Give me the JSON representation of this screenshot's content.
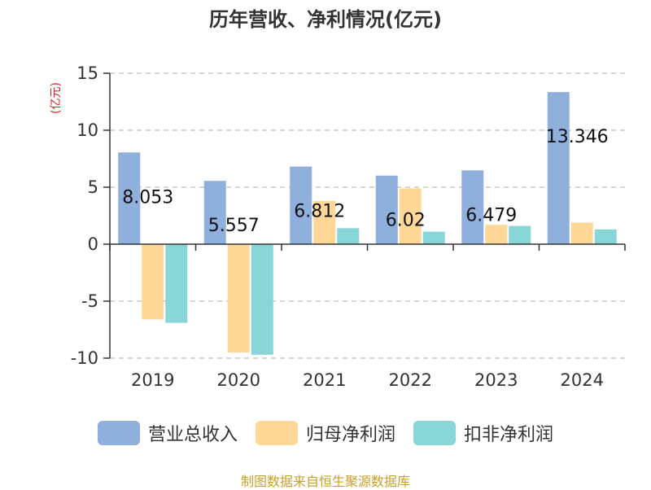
{
  "chart_data": {
    "type": "bar",
    "title": "历年营收、净利情况(亿元)",
    "unit_label": "(亿元)",
    "categories": [
      "2019",
      "2020",
      "2021",
      "2022",
      "2023",
      "2024"
    ],
    "series": [
      {
        "name": "营业总收入",
        "color": "#8fb0dc",
        "values": [
          8.053,
          5.557,
          6.812,
          6.02,
          6.479,
          13.346
        ]
      },
      {
        "name": "归母净利润",
        "color": "#ffd898",
        "values": [
          -6.6,
          -9.5,
          3.8,
          4.9,
          1.7,
          1.9
        ]
      },
      {
        "name": "扣非净利润",
        "color": "#88d6d8",
        "values": [
          -6.9,
          -9.7,
          1.4,
          1.1,
          1.6,
          1.3
        ]
      }
    ],
    "data_labels": [
      "8.053",
      "5.557",
      "6.812",
      "6.02",
      "6.479",
      "13.346"
    ],
    "ylim": [
      -10,
      15
    ],
    "yticks": [
      "15",
      "10",
      "5",
      "0",
      "-5",
      "-10"
    ],
    "grid": true,
    "legend_position": "bottom"
  },
  "source": "制图数据来自恒生聚源数据库"
}
